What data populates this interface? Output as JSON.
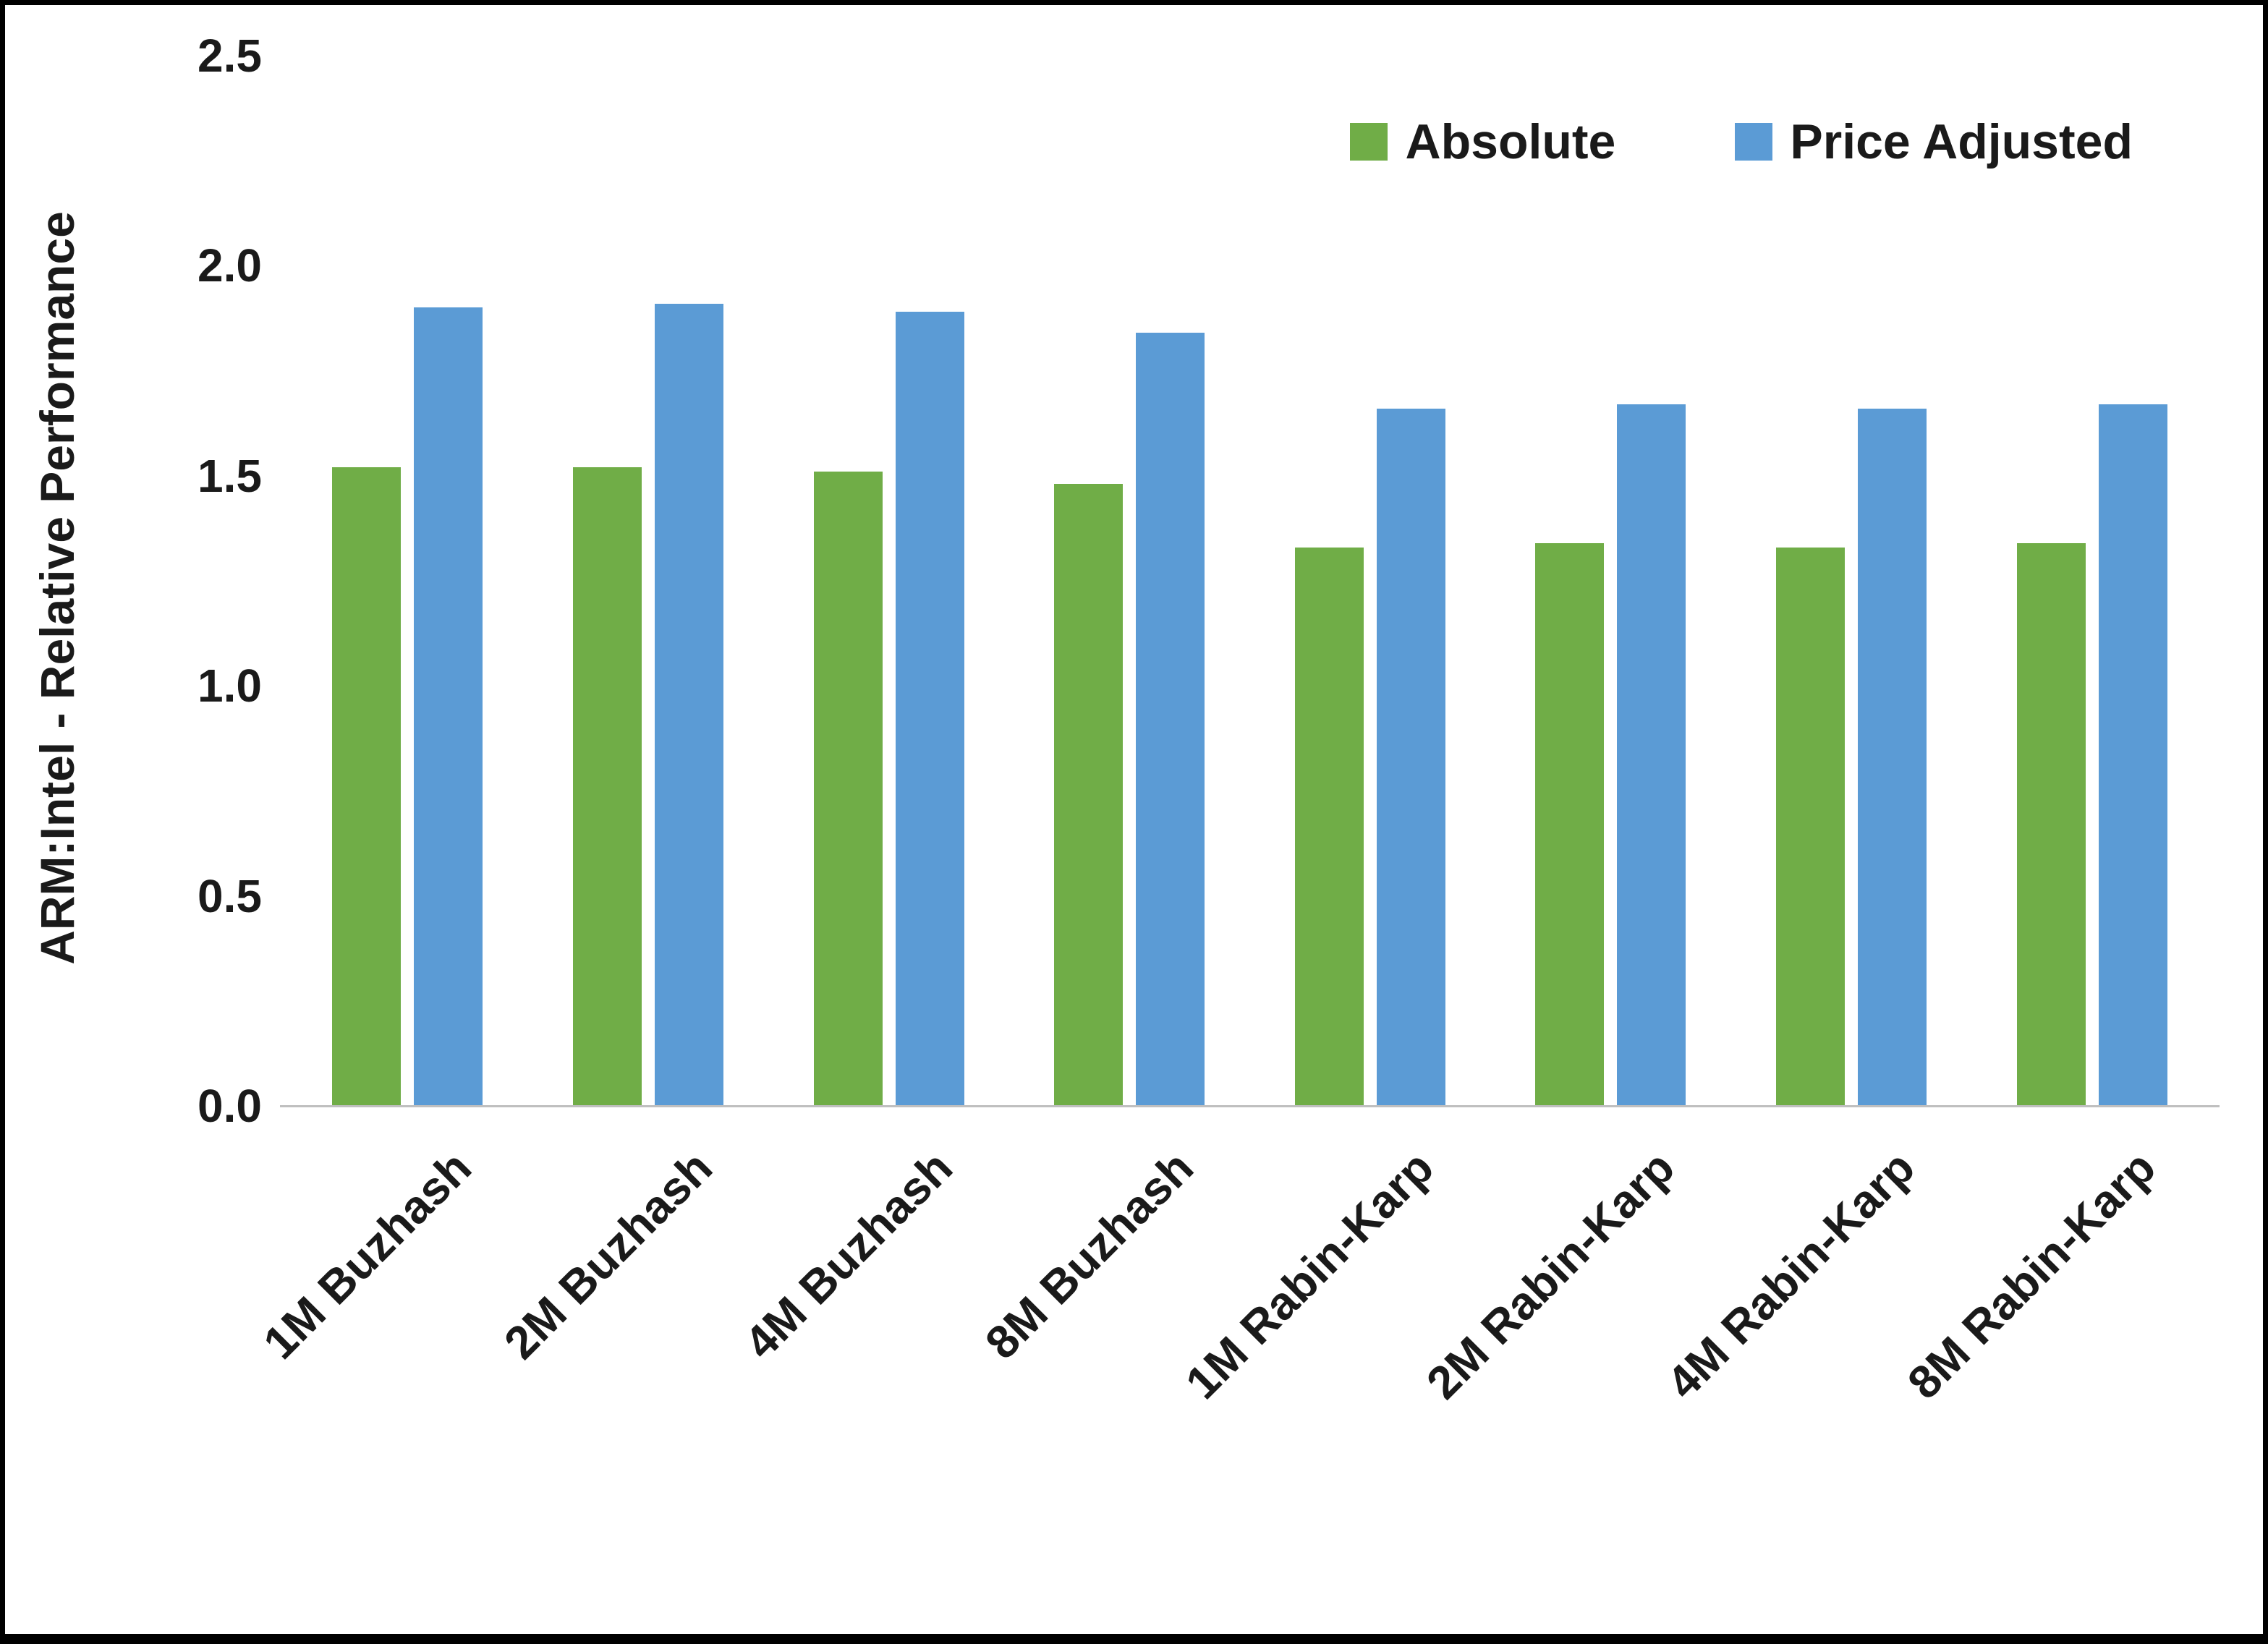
{
  "chart_data": {
    "type": "bar",
    "title": "",
    "ylabel": "ARM:Intel - Relative Performance",
    "xlabel": "",
    "ylim": [
      0,
      2.5
    ],
    "yticks": [
      "2.5",
      "2.0",
      "1.5",
      "1.0",
      "0.5",
      "0.0"
    ],
    "grid": false,
    "legend_position": "top-right",
    "categories": [
      "1M Buzhash",
      "2M Buzhash",
      "4M Buzhash",
      "8M Buzhash",
      "1M Rabin-Karp",
      "2M Rabin-Karp",
      "4M Rabin-Karp",
      "8M Rabin-Karp"
    ],
    "series": [
      {
        "name": "Absolute",
        "color": "#70AD47",
        "values": [
          1.52,
          1.52,
          1.51,
          1.48,
          1.33,
          1.34,
          1.33,
          1.34
        ]
      },
      {
        "name": "Price Adjusted",
        "color": "#5B9BD5",
        "values": [
          1.9,
          1.91,
          1.89,
          1.84,
          1.66,
          1.67,
          1.66,
          1.67
        ]
      }
    ]
  }
}
